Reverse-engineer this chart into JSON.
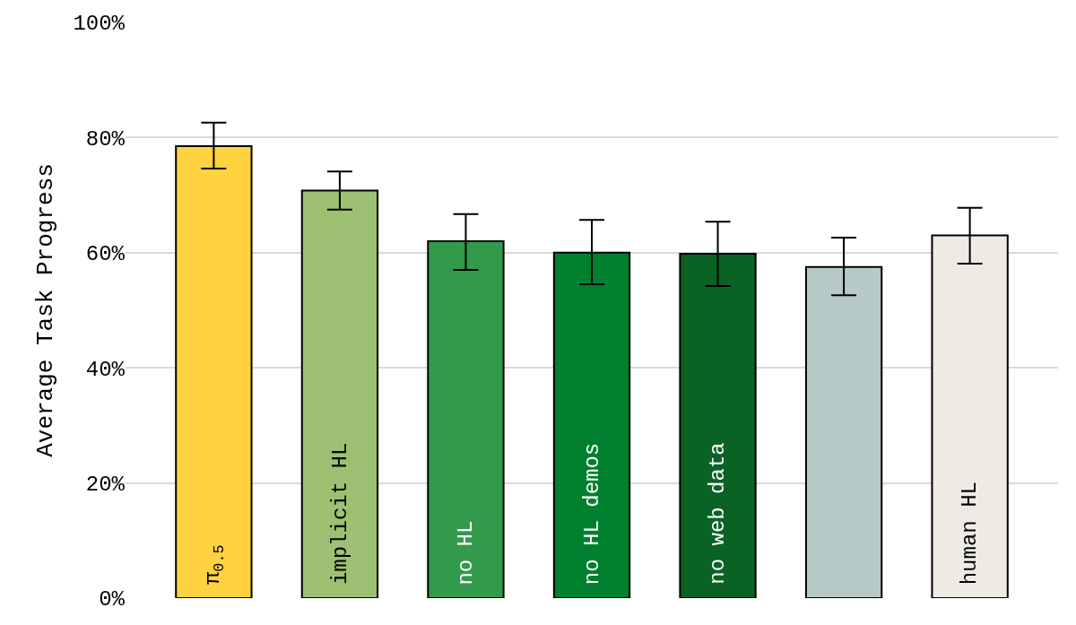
{
  "chart_data": {
    "type": "bar",
    "ylabel": "Average Task Progress",
    "categories": [
      "π$_{0.5}$",
      "implicit HL",
      "no HL",
      "no HL demos",
      "no web data",
      null,
      "human HL"
    ],
    "values": [
      78.5,
      70.8,
      62,
      60,
      59.8,
      57.5,
      63
    ],
    "colors": [
      "#ffd23f",
      "#9dc073",
      "#339a4b",
      "#00802e",
      "#0a6225",
      "#b7c9c7",
      "#edebe4"
    ],
    "errors": [
      [
        74.6,
        82.6
      ],
      [
        67.5,
        74.1
      ],
      [
        57,
        66.7
      ],
      [
        54.5,
        65.7
      ],
      [
        54.2,
        65.4
      ],
      [
        52.6,
        62.6
      ],
      [
        58.1,
        67.8
      ]
    ],
    "ylim": [
      0,
      100
    ],
    "yticks": [
      {
        "value": 0,
        "label": "0%"
      },
      {
        "value": 20,
        "label": "20%"
      },
      {
        "value": 40,
        "label": "40%"
      },
      {
        "value": 60,
        "label": "60%"
      },
      {
        "value": 80,
        "label": "80%"
      },
      {
        "value": 100,
        "label": "100%"
      }
    ],
    "grid": "y"
  }
}
